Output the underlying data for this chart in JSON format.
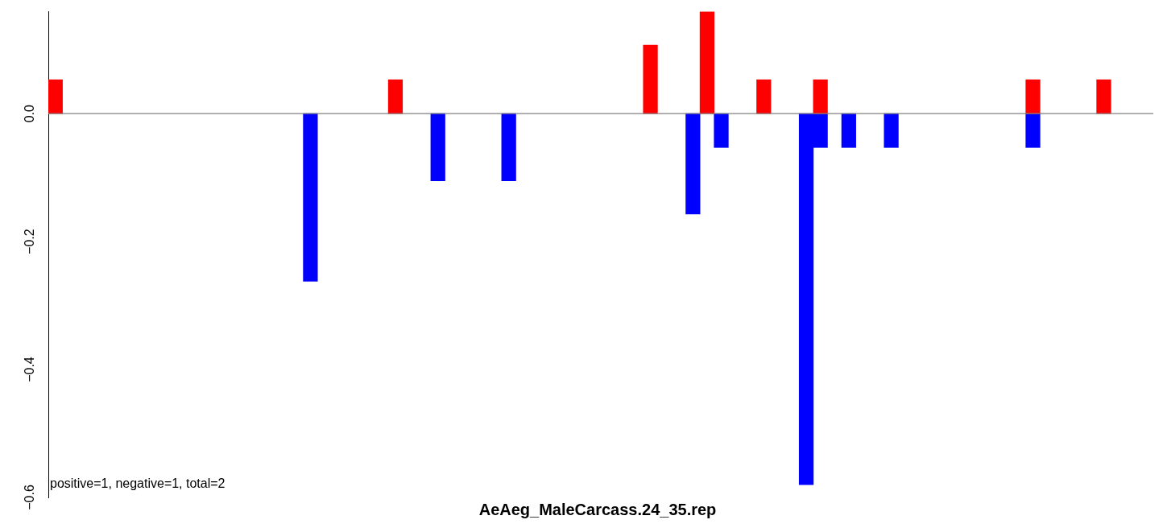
{
  "chart_data": {
    "type": "bar",
    "title": "AeAeg_MaleCarcass.24_35.rep",
    "annotations": [
      "positive=1, negative=1, total=2"
    ],
    "categories": [
      null,
      null,
      null,
      null,
      null,
      null,
      null,
      null,
      null,
      null,
      null,
      null,
      null,
      null,
      null,
      null,
      null,
      null,
      null,
      null,
      null,
      null,
      null,
      null,
      null,
      null,
      null,
      null,
      null,
      null,
      null,
      null,
      null,
      null,
      null,
      null,
      null,
      null,
      null,
      null,
      null,
      null,
      null,
      null,
      null,
      null,
      null,
      null,
      null,
      null,
      null,
      null,
      null,
      null,
      null,
      null,
      null,
      null,
      null,
      null,
      null,
      null,
      null,
      null,
      null,
      null,
      null,
      null,
      null,
      null,
      null,
      null,
      null,
      null,
      null,
      null,
      null,
      null
    ],
    "series": [
      {
        "color": "#ff0000",
        "values": [
          0.053,
          null,
          null,
          null,
          null,
          null,
          null,
          null,
          null,
          null,
          null,
          null,
          null,
          null,
          null,
          null,
          null,
          null,
          null,
          null,
          null,
          null,
          null,
          null,
          0.053,
          null,
          null,
          null,
          null,
          null,
          null,
          null,
          null,
          null,
          null,
          null,
          null,
          null,
          null,
          null,
          null,
          null,
          0.107,
          null,
          null,
          null,
          0.159,
          null,
          null,
          null,
          0.053,
          null,
          null,
          null,
          0.053,
          null,
          null,
          null,
          null,
          null,
          null,
          null,
          null,
          null,
          null,
          null,
          null,
          null,
          null,
          0.053,
          null,
          null,
          null,
          null,
          0.053,
          null,
          null,
          null
        ]
      },
      {
        "color": "#0000ff",
        "values": [
          null,
          null,
          null,
          null,
          null,
          null,
          null,
          null,
          null,
          null,
          null,
          null,
          null,
          null,
          null,
          null,
          null,
          null,
          -0.262,
          null,
          null,
          null,
          null,
          null,
          null,
          null,
          null,
          -0.105,
          null,
          null,
          null,
          null,
          -0.105,
          null,
          null,
          null,
          null,
          null,
          null,
          null,
          null,
          null,
          null,
          null,
          null,
          -0.157,
          null,
          -0.053,
          null,
          null,
          null,
          null,
          null,
          -0.58,
          -0.053,
          null,
          -0.053,
          null,
          null,
          -0.053,
          null,
          null,
          null,
          null,
          null,
          null,
          null,
          null,
          null,
          -0.053,
          null,
          null,
          null,
          null,
          null,
          null,
          null,
          null
        ]
      }
    ],
    "stacked": true,
    "ylim": [
      -0.6,
      0.16
    ],
    "yticks": [
      {
        "value": 0,
        "label": "0.0"
      },
      {
        "value": -0.2,
        "label": "−0.2"
      },
      {
        "value": -0.4,
        "label": "−0.4"
      },
      {
        "value": -0.6,
        "label": "−0.6"
      }
    ],
    "ref_lines": [
      {
        "axis": "y",
        "value": 0,
        "color": "#808080"
      }
    ],
    "grid": false,
    "legend": false
  }
}
